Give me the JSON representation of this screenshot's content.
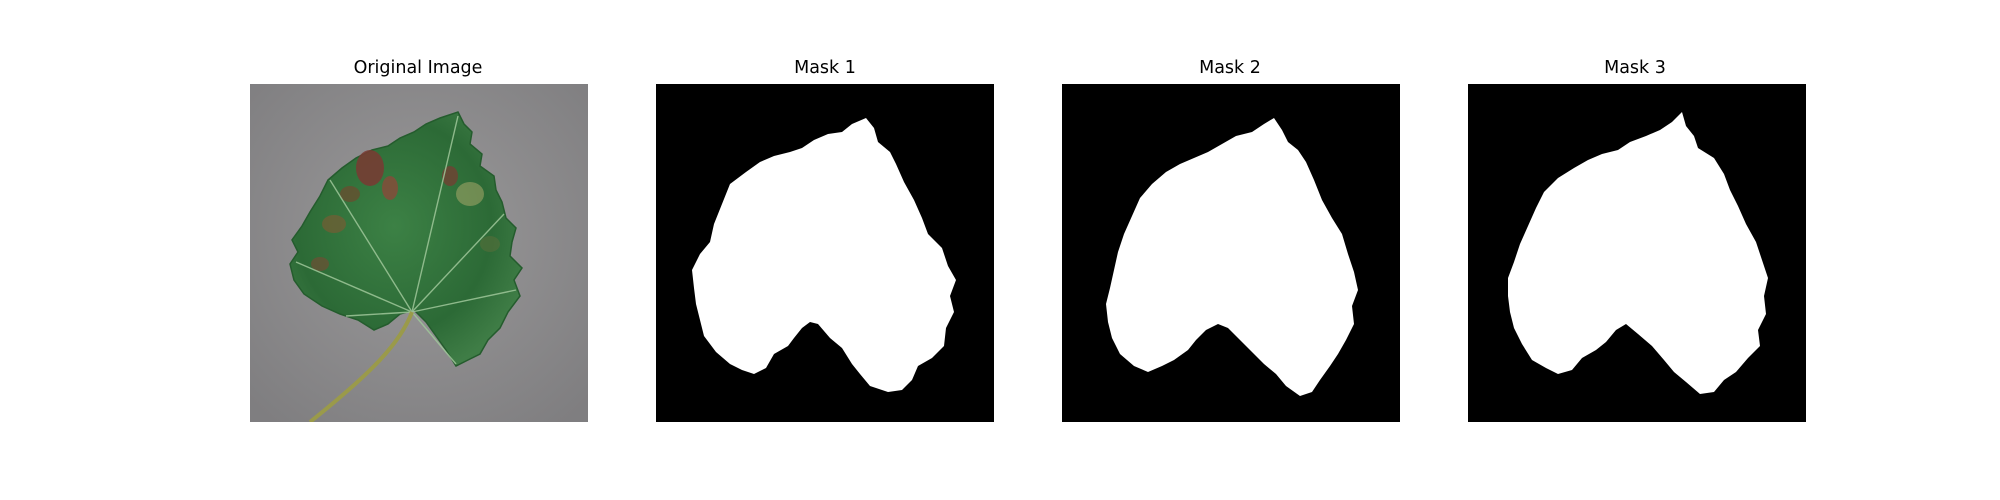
{
  "figure": {
    "panels": [
      {
        "title": "Original Image",
        "kind": "photo",
        "subject": "leaf"
      },
      {
        "title": "Mask 1",
        "kind": "binary-mask"
      },
      {
        "title": "Mask 2",
        "kind": "binary-mask"
      },
      {
        "title": "Mask 3",
        "kind": "binary-mask"
      }
    ],
    "colors": {
      "mask_background": "#000000",
      "mask_foreground": "#ffffff",
      "photo_background": "#8e8d8e",
      "leaf_green": "#2f6e3a",
      "lesion_brown": "#7a3a32"
    }
  }
}
